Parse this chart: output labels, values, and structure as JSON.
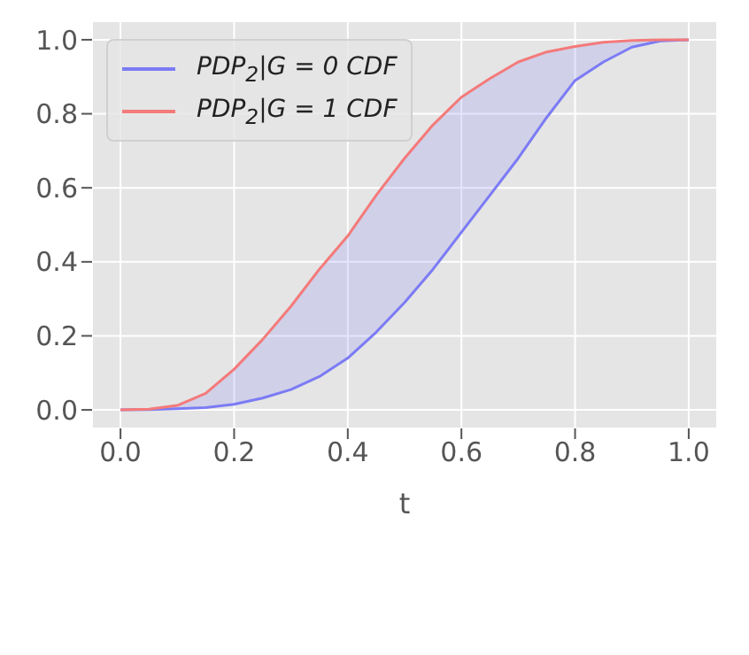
{
  "chart_data": {
    "type": "line",
    "xlabel": "t",
    "x": [
      0,
      0.05,
      0.1,
      0.15,
      0.2,
      0.25,
      0.3,
      0.35,
      0.4,
      0.45,
      0.5,
      0.55,
      0.6,
      0.65,
      0.7,
      0.75,
      0.8,
      0.85,
      0.9,
      0.95,
      1.0
    ],
    "series": [
      {
        "name": "PDP$_{2}$|G = 0 CDF",
        "color": "#7b7bf5",
        "values": [
          0,
          0.001,
          0.003,
          0.006,
          0.015,
          0.032,
          0.055,
          0.09,
          0.14,
          0.21,
          0.29,
          0.38,
          0.48,
          0.58,
          0.68,
          0.79,
          0.89,
          0.94,
          0.98,
          0.997,
          1.0
        ]
      },
      {
        "name": "PDP$_{2}$|G = 1 CDF",
        "color": "#f47a7a",
        "values": [
          0,
          0.002,
          0.012,
          0.045,
          0.11,
          0.19,
          0.28,
          0.38,
          0.47,
          0.58,
          0.68,
          0.77,
          0.845,
          0.895,
          0.94,
          0.967,
          0.982,
          0.993,
          0.998,
          1.0,
          1.0
        ],
        "lower": [
          0,
          0.001,
          0.003,
          0.006,
          0.015,
          0.032,
          0.055,
          0.09,
          0.14,
          0.21,
          0.29,
          0.38,
          0.48,
          0.58,
          0.68,
          0.79,
          0.89,
          0.94,
          0.98,
          0.997,
          1.0
        ],
        "upper": [
          0,
          0.002,
          0.012,
          0.045,
          0.11,
          0.19,
          0.28,
          0.38,
          0.47,
          0.58,
          0.68,
          0.77,
          0.845,
          0.895,
          0.94,
          0.967,
          0.982,
          0.993,
          0.998,
          1.0,
          1.0
        ]
      }
    ],
    "xlim": [
      -0.05,
      1.05
    ],
    "xticks": [
      {
        "value": 0,
        "label": "0.0"
      },
      {
        "value": 0.2,
        "label": "0.2"
      },
      {
        "value": 0.4,
        "label": "0.4"
      },
      {
        "value": 0.6,
        "label": "0.6"
      },
      {
        "value": 0.8,
        "label": "0.8"
      },
      {
        "value": 1.0,
        "label": "1.0"
      }
    ],
    "ylim": [
      -0.05,
      1.05
    ],
    "yticks": [
      {
        "value": 0,
        "label": "0.0"
      },
      {
        "value": 0.2,
        "label": "0.2"
      },
      {
        "value": 0.4,
        "label": "0.4"
      },
      {
        "value": 0.6,
        "label": "0.6"
      },
      {
        "value": 0.8,
        "label": "0.8"
      },
      {
        "value": 1.0,
        "label": "1.0"
      }
    ],
    "grid": true,
    "legend": "top left",
    "line_style": "solid",
    "marker": "none"
  }
}
